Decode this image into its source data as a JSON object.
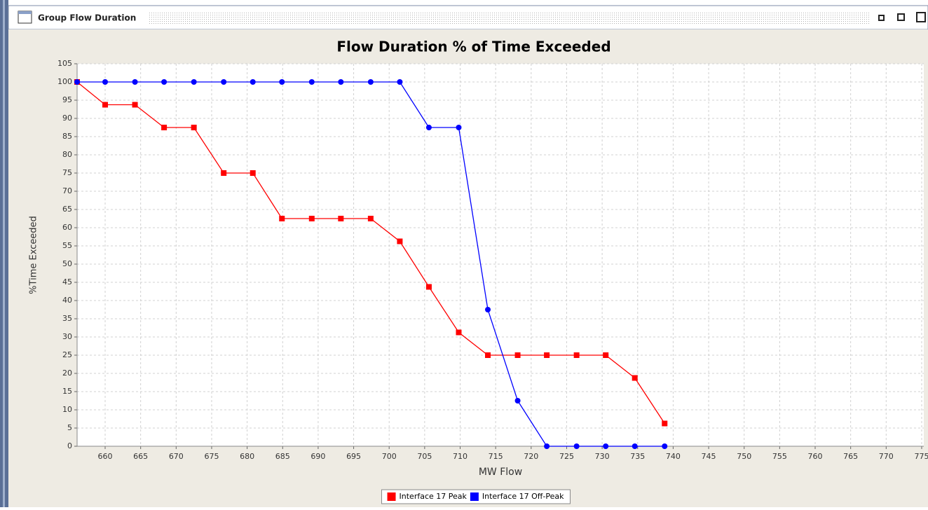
{
  "window": {
    "title": "Group Flow Duration"
  },
  "chart_data": {
    "type": "line",
    "title": "Flow Duration % of Time Exceeded",
    "xlabel": "MW Flow",
    "ylabel": "%Time Exceeded",
    "x": [
      656.05,
      660,
      664.2,
      668.3,
      672.5,
      676.7,
      680.8,
      684.9,
      689.1,
      693.2,
      697.4,
      701.5,
      705.6,
      709.8,
      713.9,
      718.1,
      722.2,
      726.4,
      730.5,
      734.6,
      738.8
    ],
    "series": [
      {
        "name": "Interface 17 Peak",
        "color": "#ff0000",
        "marker": "square",
        "values": [
          100,
          93.75,
          93.75,
          87.5,
          87.5,
          75,
          75,
          62.5,
          62.5,
          62.5,
          62.5,
          56.25,
          43.75,
          31.25,
          25,
          25,
          25,
          25,
          25,
          18.75,
          6.25
        ]
      },
      {
        "name": "Interface 17 Off-Peak",
        "color": "#0000ff",
        "marker": "circle",
        "values": [
          100,
          100,
          100,
          100,
          100,
          100,
          100,
          100,
          100,
          100,
          100,
          100,
          87.5,
          87.5,
          37.5,
          12.5,
          0,
          0,
          0,
          0,
          0
        ]
      }
    ],
    "xlim": [
      656.05,
      775.3
    ],
    "ylim": [
      0,
      105
    ],
    "xticks": [
      660,
      665,
      670,
      675,
      680,
      685,
      690,
      695,
      700,
      705,
      710,
      715,
      720,
      725,
      730,
      735,
      740,
      745,
      750,
      755,
      760,
      765,
      770,
      775
    ],
    "yticks": [
      0,
      5,
      10,
      15,
      20,
      25,
      30,
      35,
      40,
      45,
      50,
      55,
      60,
      65,
      70,
      75,
      80,
      85,
      90,
      95,
      100,
      105
    ],
    "grid": true,
    "legend": "bottom"
  }
}
